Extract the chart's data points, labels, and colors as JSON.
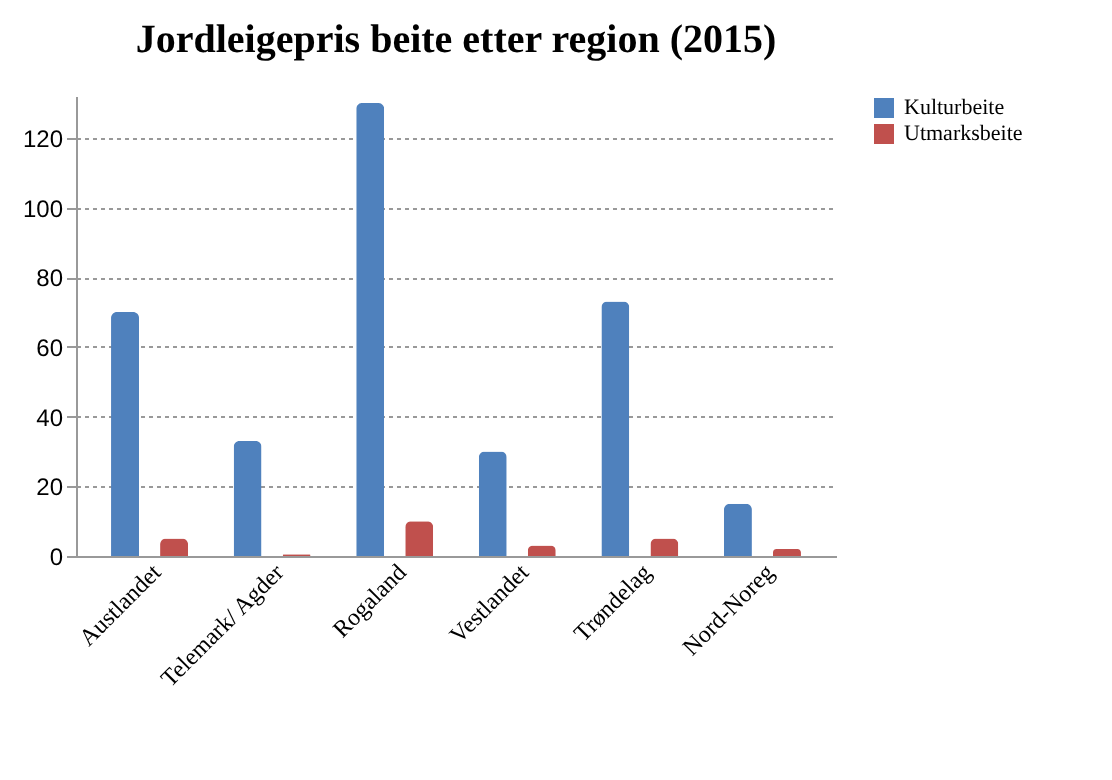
{
  "chart_data": {
    "type": "bar",
    "title": "Jordleigepris beite etter region (2015)",
    "categories": [
      "Austlandet",
      "Telemark/ Agder",
      "Rogaland",
      "Vestlandet",
      "Trøndelag",
      "Nord-Noreg"
    ],
    "series": [
      {
        "name": "Kulturbeite",
        "color": "#4f81bd",
        "values": [
          70,
          33,
          130,
          30,
          73,
          15
        ]
      },
      {
        "name": "Utmarksbeite",
        "color": "#c0504d",
        "values": [
          5,
          0.5,
          10,
          3,
          5,
          2
        ]
      }
    ],
    "ylim": [
      0,
      132
    ],
    "yticks": [
      0,
      20,
      40,
      60,
      80,
      100,
      120
    ],
    "grid": "y",
    "legend": "right"
  }
}
